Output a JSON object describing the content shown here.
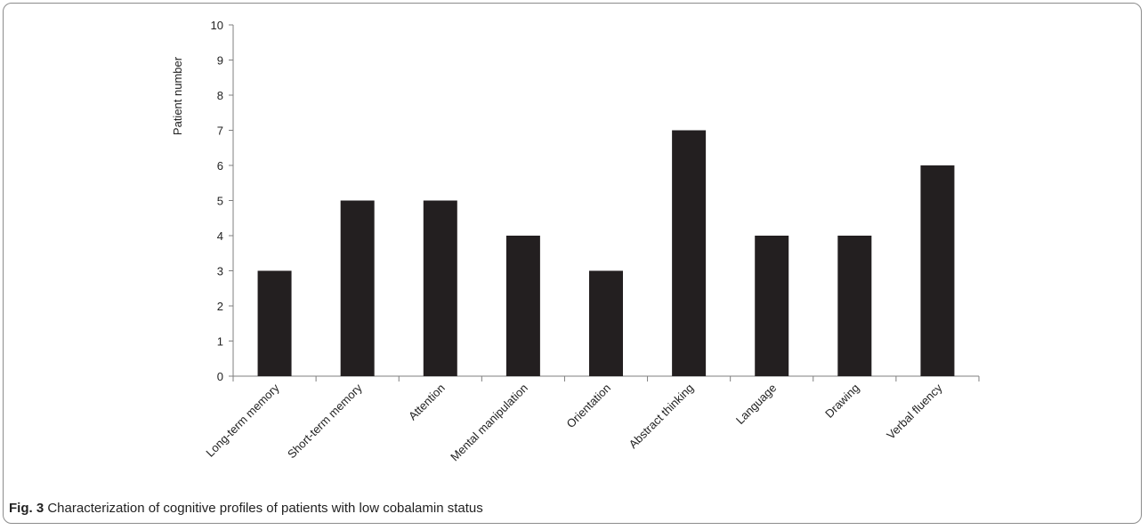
{
  "chart_data": {
    "type": "bar",
    "categories": [
      "Long-term memory",
      "Short-term memory",
      "Attention",
      "Mental manipulation",
      "Orientation",
      "Abstract thinking",
      "Language",
      "Drawing",
      "Verbal fluency"
    ],
    "values": [
      3,
      5,
      5,
      4,
      3,
      7,
      4,
      4,
      6
    ],
    "ylabel": "Patient  number",
    "ylim": [
      0,
      10
    ],
    "yticks": [
      0,
      1,
      2,
      3,
      4,
      5,
      6,
      7,
      8,
      9,
      10
    ],
    "bar_color": "#231f20",
    "grid": false,
    "legend": "none"
  },
  "caption": {
    "label": "Fig. 3",
    "text": "Characterization of cognitive profiles of patients with low cobalamin status"
  }
}
